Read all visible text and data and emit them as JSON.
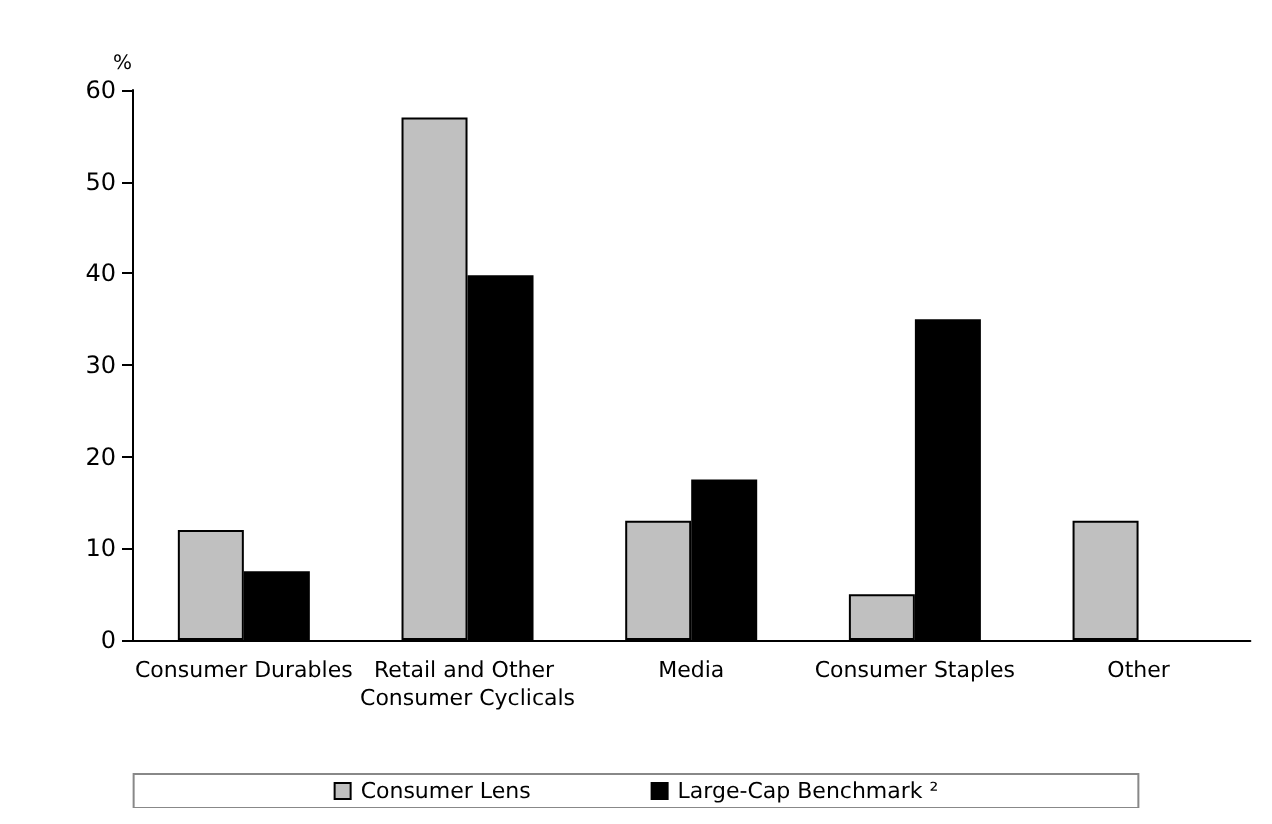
{
  "chart_data": {
    "type": "bar",
    "ylabel": "%",
    "categories": [
      "Consumer Durables",
      "Retail and Other Consumer Cyclicals",
      "Media",
      "Consumer Staples",
      "Other"
    ],
    "series": [
      {
        "name": "Consumer Lens",
        "color": "#c0c0c0",
        "values": [
          12,
          57,
          13,
          5,
          13
        ]
      },
      {
        "name": "Large-Cap Benchmark ²",
        "color": "#000000",
        "values": [
          7.5,
          39.8,
          17.5,
          35,
          null
        ]
      }
    ],
    "ylim": [
      0,
      60
    ],
    "yticks": [
      0,
      10,
      20,
      30,
      40,
      50,
      60
    ],
    "grid": false,
    "legend": "bottom"
  }
}
